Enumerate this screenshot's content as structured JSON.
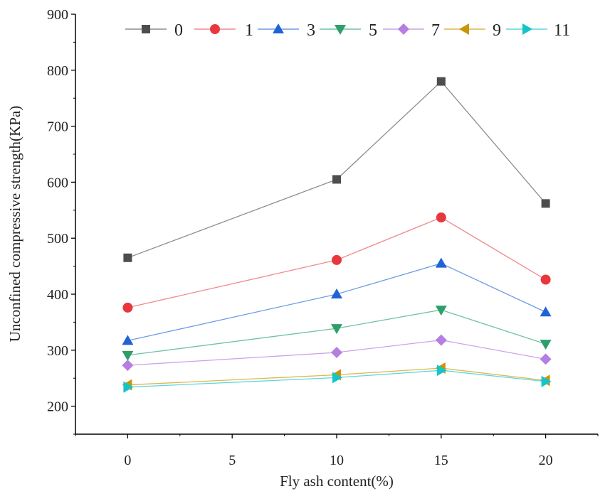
{
  "chart_data": {
    "type": "line",
    "title": "",
    "xlabel": "Fly ash content(%)",
    "ylabel": "Unconfined compressive strength(KPa)",
    "xlim": [
      -2.5,
      22.5
    ],
    "ylim": [
      150,
      900
    ],
    "xticks": [
      0,
      5,
      10,
      15,
      20
    ],
    "yticks": [
      200,
      300,
      400,
      500,
      600,
      700,
      800,
      900
    ],
    "x": [
      0,
      10,
      15,
      20
    ],
    "grid": false,
    "legend_position": "top",
    "series": [
      {
        "name": "0",
        "values": [
          465,
          605,
          780,
          562
        ],
        "color": "#4d4d4d",
        "line_color": "#8c8c8c",
        "marker": "square-icon"
      },
      {
        "name": "1",
        "values": [
          376,
          461,
          537,
          426
        ],
        "color": "#e8383d",
        "line_color": "#f08a8c",
        "marker": "circle-icon"
      },
      {
        "name": "3",
        "values": [
          317,
          400,
          455,
          368
        ],
        "color": "#1f63d6",
        "line_color": "#6f9be6",
        "marker": "triangle-up-icon"
      },
      {
        "name": "5",
        "values": [
          291,
          339,
          372,
          311
        ],
        "color": "#2e9e6b",
        "line_color": "#6fc39d",
        "marker": "triangle-down-icon"
      },
      {
        "name": "7",
        "values": [
          273,
          296,
          318,
          284
        ],
        "color": "#b57ee0",
        "line_color": "#c9a3ea",
        "marker": "diamond-icon"
      },
      {
        "name": "9",
        "values": [
          238,
          256,
          268,
          246
        ],
        "color": "#c9960a",
        "line_color": "#dcb84f",
        "marker": "triangle-left-icon"
      },
      {
        "name": "11",
        "values": [
          234,
          251,
          264,
          244
        ],
        "color": "#14c4cc",
        "line_color": "#5fd8dd",
        "marker": "triangle-right-icon"
      }
    ]
  }
}
